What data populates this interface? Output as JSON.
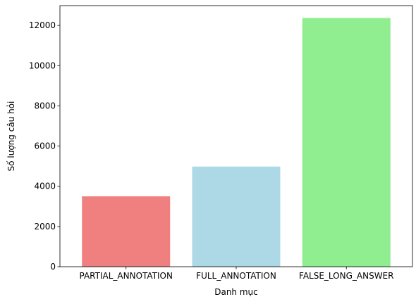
{
  "chart_data": {
    "type": "bar",
    "categories": [
      "PARTIAL_ANNOTATION",
      "FULL_ANNOTATION",
      "FALSE_LONG_ANSWER"
    ],
    "values": [
      3500,
      4980,
      12370
    ],
    "colors": [
      "#f08080",
      "#add8e6",
      "#90ee90"
    ],
    "title": "",
    "xlabel": "Danh mục",
    "ylabel": "Số lượng câu hỏi",
    "ylim": [
      0,
      12985
    ],
    "yticks": [
      0,
      2000,
      4000,
      6000,
      8000,
      10000,
      12000
    ],
    "grid": false,
    "legend": "none"
  }
}
